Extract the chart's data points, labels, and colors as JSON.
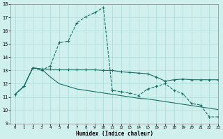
{
  "xlabel": "Humidex (Indice chaleur)",
  "xlim": [
    -0.5,
    23
  ],
  "ylim": [
    9,
    18
  ],
  "xticks": [
    0,
    1,
    2,
    3,
    4,
    5,
    6,
    7,
    8,
    9,
    10,
    11,
    12,
    13,
    14,
    15,
    16,
    17,
    18,
    19,
    20,
    21,
    22,
    23
  ],
  "yticks": [
    9,
    10,
    11,
    12,
    13,
    14,
    15,
    16,
    17,
    18
  ],
  "bg_color": "#cff0ed",
  "grid_color": "#aaddd8",
  "line_color": "#1a6e64",
  "series": [
    {
      "x": [
        0,
        1,
        2,
        3,
        4,
        5,
        6,
        7,
        8,
        9,
        10,
        11,
        12,
        13,
        14,
        15,
        16,
        17,
        18,
        19,
        20,
        21,
        22,
        23
      ],
      "y": [
        11.2,
        11.8,
        13.2,
        13.0,
        13.35,
        15.1,
        15.2,
        16.6,
        17.05,
        17.35,
        17.75,
        11.5,
        11.4,
        11.3,
        11.1,
        11.6,
        11.8,
        12.0,
        11.5,
        11.25,
        10.5,
        10.4,
        9.5,
        9.5
      ],
      "linestyle": "--",
      "marker": "+"
    },
    {
      "x": [
        0,
        1,
        2,
        3,
        4,
        5,
        6,
        7,
        8,
        9,
        10,
        11,
        12,
        13,
        14,
        15,
        16,
        17,
        18,
        19,
        20,
        21,
        22,
        23
      ],
      "y": [
        11.2,
        11.8,
        13.2,
        13.1,
        13.1,
        13.05,
        13.05,
        13.05,
        13.05,
        13.05,
        13.0,
        13.0,
        12.9,
        12.85,
        12.8,
        12.75,
        12.5,
        12.2,
        12.3,
        12.35,
        12.3,
        12.3,
        12.3,
        12.3
      ],
      "linestyle": "-",
      "marker": "+"
    },
    {
      "x": [
        0,
        1,
        2,
        3,
        4,
        5,
        6,
        7,
        8,
        9,
        10,
        11,
        12,
        13,
        14,
        15,
        16,
        17,
        18,
        19,
        20,
        21,
        22,
        23
      ],
      "y": [
        11.2,
        11.8,
        13.2,
        13.1,
        12.5,
        12.0,
        11.8,
        11.6,
        11.5,
        11.4,
        11.3,
        11.2,
        11.1,
        11.0,
        10.9,
        10.85,
        10.75,
        10.65,
        10.55,
        10.45,
        10.35,
        10.25,
        10.15,
        10.05
      ],
      "linestyle": "-",
      "marker": ""
    }
  ]
}
